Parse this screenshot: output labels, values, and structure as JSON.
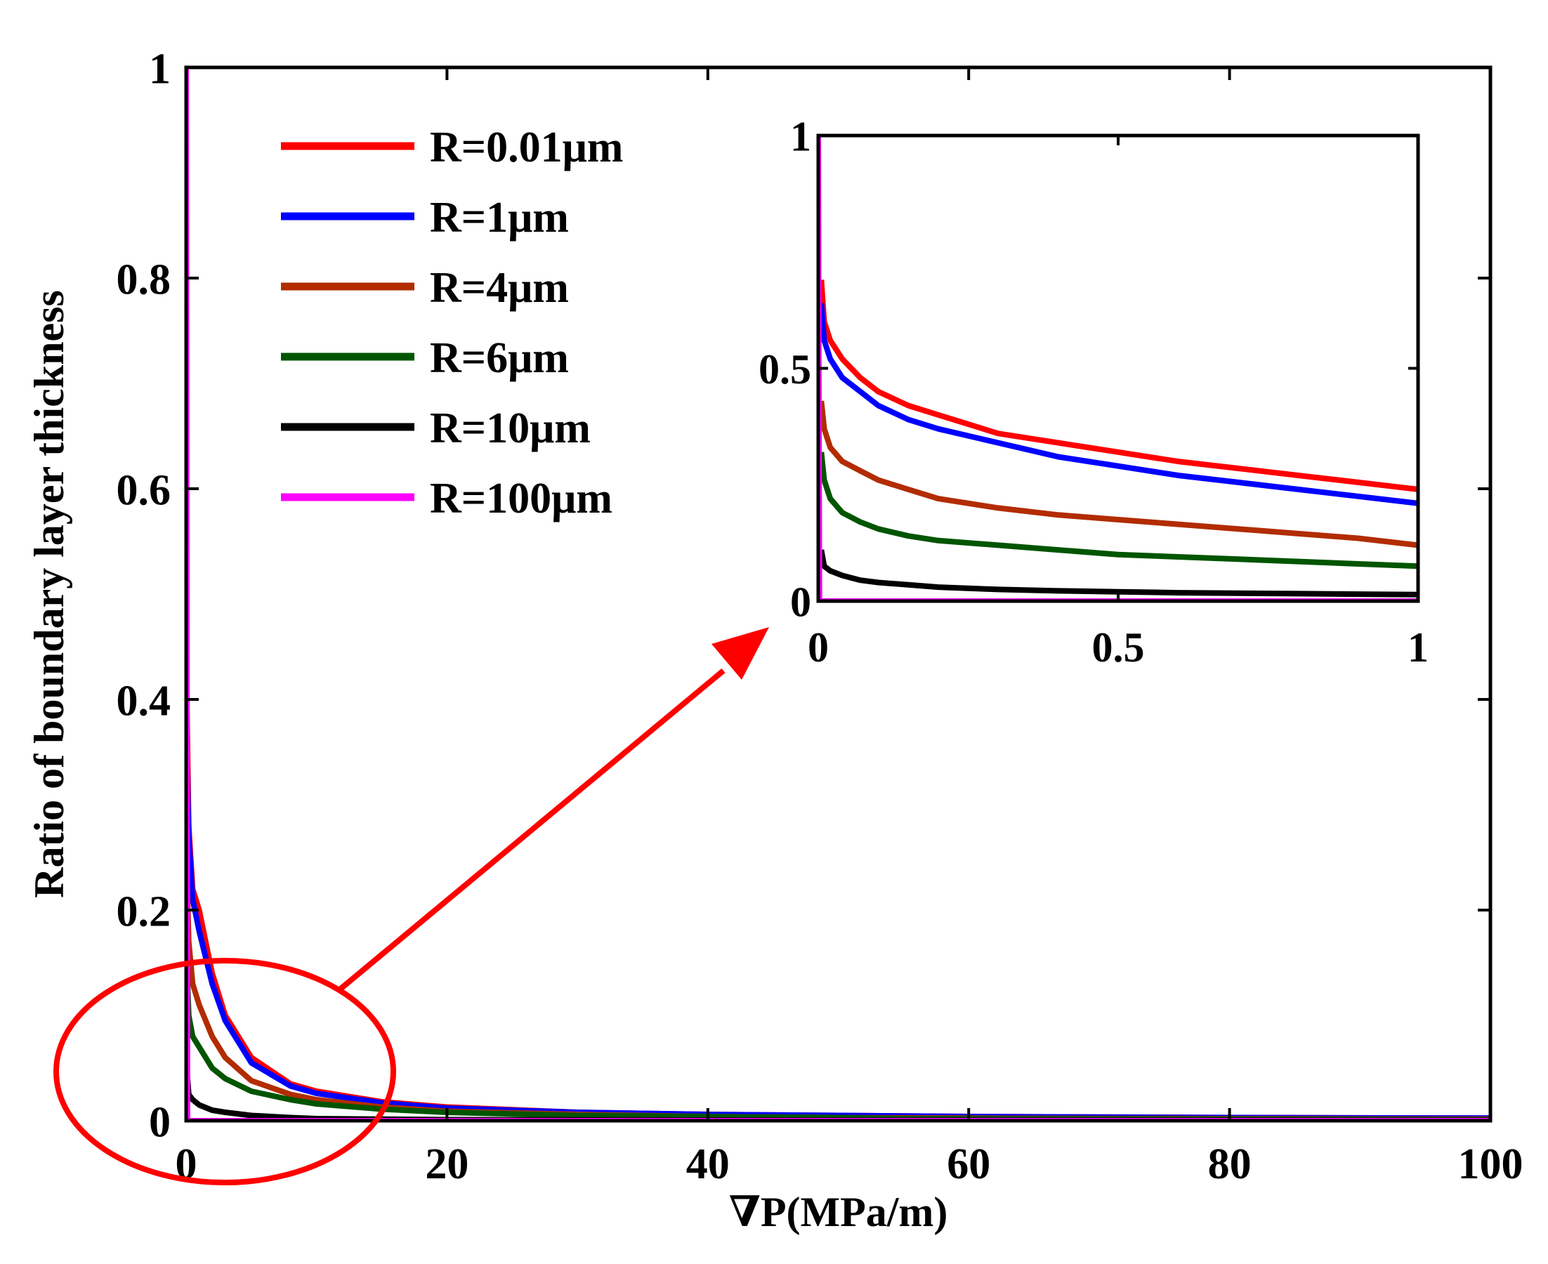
{
  "chart_data": [
    {
      "id": "main",
      "type": "line",
      "title": "",
      "xlabel": "∇P(MPa/m)",
      "ylabel": "Ratio of boundary layer thickness",
      "xlim": [
        0,
        100
      ],
      "ylim": [
        0,
        1
      ],
      "xticks": [
        0,
        20,
        40,
        60,
        80,
        100
      ],
      "yticks": [
        0,
        0.2,
        0.4,
        0.6,
        0.8,
        1
      ],
      "xtick_labels": [
        "0",
        "20",
        "40",
        "60",
        "80",
        "100"
      ],
      "ytick_labels": [
        "0",
        "0.2",
        "0.4",
        "0.6",
        "0.8",
        "1"
      ],
      "grid": false,
      "legend_position": "top-left",
      "series": [
        {
          "name": "R=0.01μm",
          "color": "#ff0000",
          "x": [
            0.05,
            0.2,
            0.5,
            1,
            2,
            3,
            5,
            8,
            10,
            15,
            20,
            30,
            40,
            50,
            60,
            80,
            100
          ],
          "values": [
            0.4,
            0.28,
            0.22,
            0.2,
            0.14,
            0.1,
            0.06,
            0.035,
            0.028,
            0.018,
            0.013,
            0.008,
            0.006,
            0.005,
            0.004,
            0.003,
            0.0025
          ]
        },
        {
          "name": "R=1μm",
          "color": "#0000ff",
          "x": [
            0.05,
            0.2,
            0.5,
            1,
            2,
            3,
            5,
            8,
            10,
            15,
            20,
            30,
            40,
            50,
            60,
            80,
            100
          ],
          "values": [
            0.35,
            0.27,
            0.21,
            0.18,
            0.13,
            0.095,
            0.055,
            0.033,
            0.026,
            0.017,
            0.012,
            0.008,
            0.006,
            0.005,
            0.004,
            0.003,
            0.0025
          ]
        },
        {
          "name": "R=4μm",
          "color": "#b22c00",
          "x": [
            0.05,
            0.2,
            0.5,
            1,
            2,
            3,
            5,
            8,
            10,
            15,
            20,
            30,
            40,
            50,
            60,
            80,
            100
          ],
          "values": [
            0.24,
            0.17,
            0.13,
            0.11,
            0.08,
            0.06,
            0.038,
            0.025,
            0.02,
            0.013,
            0.009,
            0.006,
            0.004,
            0.003,
            0.0025,
            0.002,
            0.0015
          ]
        },
        {
          "name": "R=6μm",
          "color": "#005500",
          "x": [
            0.05,
            0.2,
            0.5,
            1,
            2,
            3,
            5,
            8,
            10,
            15,
            20,
            30,
            40,
            50,
            55,
            80,
            100
          ],
          "values": [
            0.15,
            0.1,
            0.08,
            0.07,
            0.05,
            0.04,
            0.028,
            0.02,
            0.016,
            0.011,
            0.008,
            0.005,
            0.004,
            0.003,
            0.002,
            0.0015,
            0.001
          ]
        },
        {
          "name": "R=10μm",
          "color": "#000000",
          "x": [
            0.05,
            0.2,
            0.5,
            1,
            2,
            3,
            5,
            8,
            10,
            15,
            20,
            30,
            50,
            100
          ],
          "values": [
            0.05,
            0.025,
            0.02,
            0.015,
            0.01,
            0.008,
            0.005,
            0.003,
            0.002,
            0.0015,
            0.001,
            0.0008,
            0.0005,
            0.0003
          ]
        },
        {
          "name": "R=100μm",
          "color": "#ff00ff",
          "x": [
            0,
            0.1,
            1,
            100
          ],
          "values": [
            1,
            0,
            0,
            0
          ]
        }
      ]
    },
    {
      "id": "inset",
      "type": "line",
      "title": "",
      "xlabel": "",
      "ylabel": "",
      "xlim": [
        0,
        1
      ],
      "ylim": [
        0,
        1
      ],
      "xticks": [
        0,
        0.5,
        1
      ],
      "yticks": [
        0,
        0.5,
        1
      ],
      "xtick_labels": [
        "0",
        "0.5",
        "1"
      ],
      "ytick_labels": [
        "0",
        "0.5",
        "1"
      ],
      "grid": false,
      "series": [
        {
          "name": "R=0.01μm",
          "color": "#ff0000",
          "x": [
            0.005,
            0.01,
            0.02,
            0.04,
            0.07,
            0.1,
            0.15,
            0.2,
            0.3,
            0.4,
            0.5,
            0.6,
            0.7,
            0.8,
            0.9,
            1.0
          ],
          "values": [
            0.69,
            0.6,
            0.56,
            0.52,
            0.48,
            0.45,
            0.42,
            0.4,
            0.36,
            0.34,
            0.32,
            0.3,
            0.285,
            0.27,
            0.255,
            0.24
          ]
        },
        {
          "name": "R=1μm",
          "color": "#0000ff",
          "x": [
            0.005,
            0.01,
            0.02,
            0.04,
            0.07,
            0.1,
            0.15,
            0.2,
            0.3,
            0.4,
            0.5,
            0.6,
            0.7,
            0.8,
            0.9,
            1.0
          ],
          "values": [
            0.64,
            0.56,
            0.52,
            0.48,
            0.45,
            0.42,
            0.39,
            0.37,
            0.34,
            0.31,
            0.29,
            0.27,
            0.255,
            0.24,
            0.225,
            0.21
          ]
        },
        {
          "name": "R=4μm",
          "color": "#b22c00",
          "x": [
            0.005,
            0.01,
            0.02,
            0.04,
            0.07,
            0.1,
            0.15,
            0.2,
            0.3,
            0.4,
            0.5,
            0.6,
            0.7,
            0.8,
            0.9,
            1.0
          ],
          "values": [
            0.43,
            0.37,
            0.33,
            0.3,
            0.28,
            0.26,
            0.24,
            0.22,
            0.2,
            0.185,
            0.175,
            0.165,
            0.155,
            0.145,
            0.135,
            0.12
          ]
        },
        {
          "name": "R=6μm",
          "color": "#005500",
          "x": [
            0.005,
            0.01,
            0.02,
            0.04,
            0.07,
            0.1,
            0.15,
            0.2,
            0.3,
            0.4,
            0.5,
            0.6,
            0.7,
            0.8,
            0.9,
            1.0
          ],
          "values": [
            0.32,
            0.26,
            0.22,
            0.19,
            0.17,
            0.155,
            0.14,
            0.13,
            0.12,
            0.11,
            0.1,
            0.095,
            0.09,
            0.085,
            0.08,
            0.075
          ]
        },
        {
          "name": "R=10μm",
          "color": "#000000",
          "x": [
            0.005,
            0.01,
            0.02,
            0.04,
            0.07,
            0.1,
            0.15,
            0.2,
            0.3,
            0.4,
            0.5,
            0.6,
            0.7,
            0.8,
            0.9,
            1.0
          ],
          "values": [
            0.11,
            0.075,
            0.065,
            0.055,
            0.045,
            0.04,
            0.035,
            0.03,
            0.025,
            0.022,
            0.02,
            0.018,
            0.017,
            0.016,
            0.015,
            0.014
          ]
        },
        {
          "name": "R=100μm",
          "color": "#ff00ff",
          "x": [
            0,
            0.002,
            1.0
          ],
          "values": [
            1,
            0,
            0
          ]
        }
      ]
    }
  ],
  "annotation": {
    "ellipse_color": "#ff0000",
    "arrow_color": "#ff0000"
  }
}
